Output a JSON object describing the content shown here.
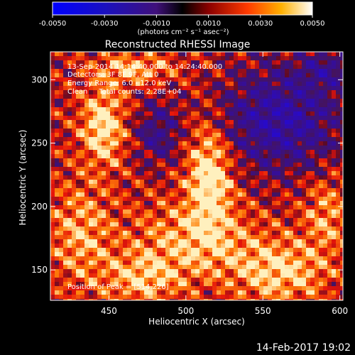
{
  "colorbar": {
    "ticks": [
      "-0.0050",
      "-0.0030",
      "-0.0010",
      "0.0010",
      "0.0030",
      "0.0050"
    ],
    "units_label": "(photons cm⁻² s⁻¹ asec⁻²)",
    "range": [
      -0.005,
      0.005
    ]
  },
  "chart_data": {
    "type": "heatmap",
    "title": "Reconstructed RHESSI Image",
    "xlabel": "Heliocentric X (arcsec)",
    "ylabel": "Heliocentric Y (arcsec)",
    "xlim": [
      412,
      602
    ],
    "ylim": [
      126,
      322
    ],
    "xticks": [
      "450",
      "500",
      "550",
      "600"
    ],
    "xtick_values": [
      450,
      500,
      550,
      600
    ],
    "yticks": [
      "150",
      "200",
      "250",
      "300"
    ],
    "ytick_values": [
      150,
      200,
      250,
      300
    ],
    "annotations": [
      "13-Sep-2014 14:14:40.000 to 14:24:40.000",
      "Detectors: 3F 8F 9F, Att 0",
      "Energy Range: 6.0 - 12.0 keV",
      "Clean     Total counts: 2.28E+04"
    ],
    "peak_label": "Position of Peak = [514,226]",
    "peak": [
      514,
      226
    ]
  },
  "footer_date": "14-Feb-2017 19:02"
}
